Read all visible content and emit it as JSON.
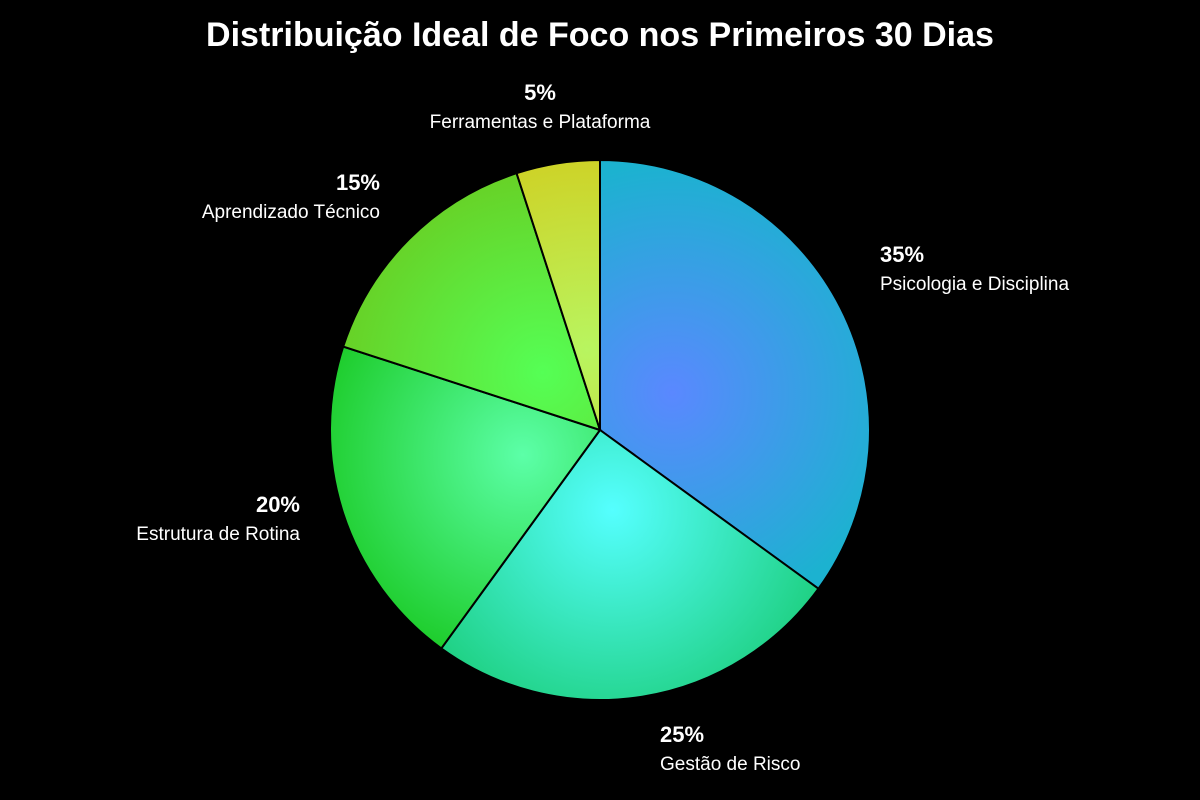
{
  "chart_data": {
    "type": "pie",
    "title": "Distribuição Ideal de Foco nos Primeiros 30 Dias",
    "start_angle": "top, clockwise",
    "slices": [
      {
        "label": "Psicologia e Disciplina",
        "value": 35,
        "value_label": "35%",
        "colors": [
          "#5a88ff",
          "#1cb2d0"
        ]
      },
      {
        "label": "Gestão de Risco",
        "value": 25,
        "value_label": "25%",
        "colors": [
          "#55ffff",
          "#1dcf7e"
        ]
      },
      {
        "label": "Estrutura de Rotina",
        "value": 20,
        "value_label": "20%",
        "colors": [
          "#5cffa8",
          "#18c820"
        ]
      },
      {
        "label": "Aprendizado Técnico",
        "value": 15,
        "value_label": "15%",
        "colors": [
          "#55ff55",
          "#6acb20"
        ]
      },
      {
        "label": "Ferramentas e Plataforma",
        "value": 5,
        "value_label": "5%",
        "colors": [
          "#b8f560",
          "#d2cc1c"
        ]
      }
    ],
    "background": "#000000"
  }
}
